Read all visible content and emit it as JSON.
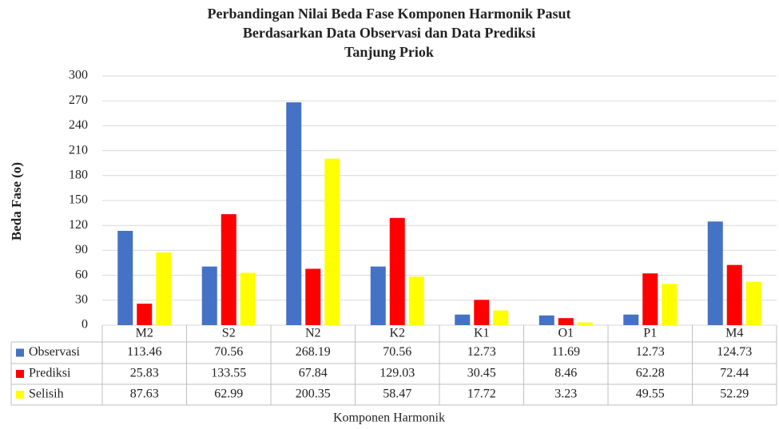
{
  "chart_data": {
    "type": "bar",
    "title": [
      "Perbandingan Nilai Beda Fase Komponen Harmonik Pasut",
      "Berdasarkan Data Observasi dan Data Prediksi",
      "Tanjung Priok"
    ],
    "y_label": "Beda Fase (o)",
    "x_label": "Komponen Harmonik",
    "categories": [
      "M2",
      "S2",
      "N2",
      "K2",
      "K1",
      "O1",
      "P1",
      "M4"
    ],
    "series": [
      {
        "name": "Observasi",
        "color": "#4472c4",
        "values": [
          113.46,
          70.56,
          268.19,
          70.56,
          12.73,
          11.69,
          12.73,
          124.73
        ]
      },
      {
        "name": "Prediksi",
        "color": "#ff0000",
        "values": [
          25.83,
          133.55,
          67.84,
          129.03,
          30.45,
          8.46,
          62.28,
          72.44
        ]
      },
      {
        "name": "Selisih",
        "color": "#ffff00",
        "values": [
          87.63,
          62.99,
          200.35,
          58.47,
          17.72,
          3.23,
          49.55,
          52.29
        ]
      }
    ],
    "ylim": [
      0,
      300
    ],
    "yticks": [
      0,
      30,
      60,
      90,
      120,
      150,
      180,
      210,
      240,
      270,
      300
    ],
    "grid": true
  }
}
